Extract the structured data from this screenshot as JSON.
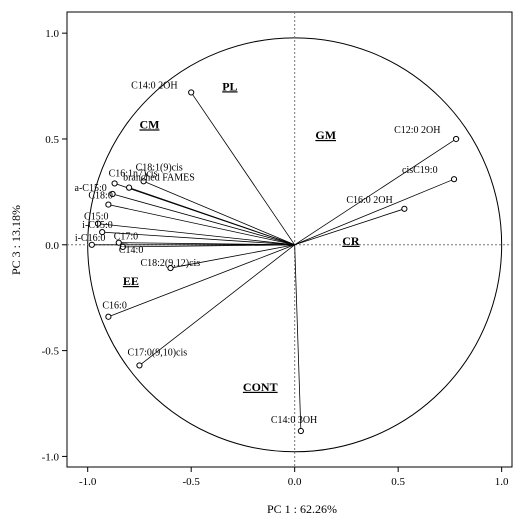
{
  "chart_data": {
    "type": "scatter",
    "subtype": "pca-loading-plot",
    "xlabel": "PC 1 : 62.26%",
    "ylabel": "PC 3 : 13.18%",
    "xlim": [
      -1.1,
      1.05
    ],
    "ylim": [
      -1.05,
      1.1
    ],
    "x_ticks": [
      -1.0,
      -0.5,
      0.0,
      0.5,
      1.0
    ],
    "y_ticks": [
      1.0,
      0.5,
      0.0,
      -0.5,
      -1.0
    ],
    "x_tick_labels": [
      "-1.0",
      "-0.5",
      "0.0",
      "0.5",
      "1.0"
    ],
    "y_tick_labels": [
      "1.0",
      "0.5",
      "0.0",
      "-0.5",
      "-1.0"
    ],
    "unit_circle": true,
    "grid": false,
    "points": [
      {
        "label": "C14:0 2OH",
        "x": -0.5,
        "y": 0.72
      },
      {
        "label": "C12:0 2OH",
        "x": 0.78,
        "y": 0.5
      },
      {
        "label": "cisC19:0",
        "x": 0.77,
        "y": 0.31
      },
      {
        "label": "C16:0 2OH",
        "x": 0.53,
        "y": 0.17
      },
      {
        "label": "C18:1(9)cis",
        "x": -0.73,
        "y": 0.3
      },
      {
        "label": "C16:1n7)cis",
        "x": -0.87,
        "y": 0.29
      },
      {
        "label": "branched FAMES",
        "x": -0.8,
        "y": 0.27
      },
      {
        "label": "a-C15:0",
        "x": -0.88,
        "y": 0.24
      },
      {
        "label": "C18:0",
        "x": -0.9,
        "y": 0.19
      },
      {
        "label": "C15:0",
        "x": -0.95,
        "y": 0.1
      },
      {
        "label": "i-C15:0",
        "x": -0.93,
        "y": 0.06
      },
      {
        "label": "i-C16:0",
        "x": -0.98,
        "y": 0.0
      },
      {
        "label": "C17:0",
        "x": -0.85,
        "y": 0.01
      },
      {
        "label": "C14:0",
        "x": -0.83,
        "y": -0.01
      },
      {
        "label": "C18:2(9,12)cis",
        "x": -0.6,
        "y": -0.11
      },
      {
        "label": "C16:0",
        "x": -0.9,
        "y": -0.34
      },
      {
        "label": "C17:0(9,10)cis",
        "x": -0.75,
        "y": -0.57
      },
      {
        "label": "C14:0 3OH",
        "x": 0.03,
        "y": -0.88
      }
    ],
    "groups": [
      {
        "label": "PL",
        "x": -0.35,
        "y": 0.73
      },
      {
        "label": "CM",
        "x": -0.75,
        "y": 0.55
      },
      {
        "label": "GM",
        "x": 0.1,
        "y": 0.5
      },
      {
        "label": "CR",
        "x": 0.23,
        "y": 0.0
      },
      {
        "label": "EE",
        "x": -0.83,
        "y": -0.19
      },
      {
        "label": "CONT",
        "x": -0.25,
        "y": -0.69
      }
    ]
  },
  "point_color": "#000000"
}
